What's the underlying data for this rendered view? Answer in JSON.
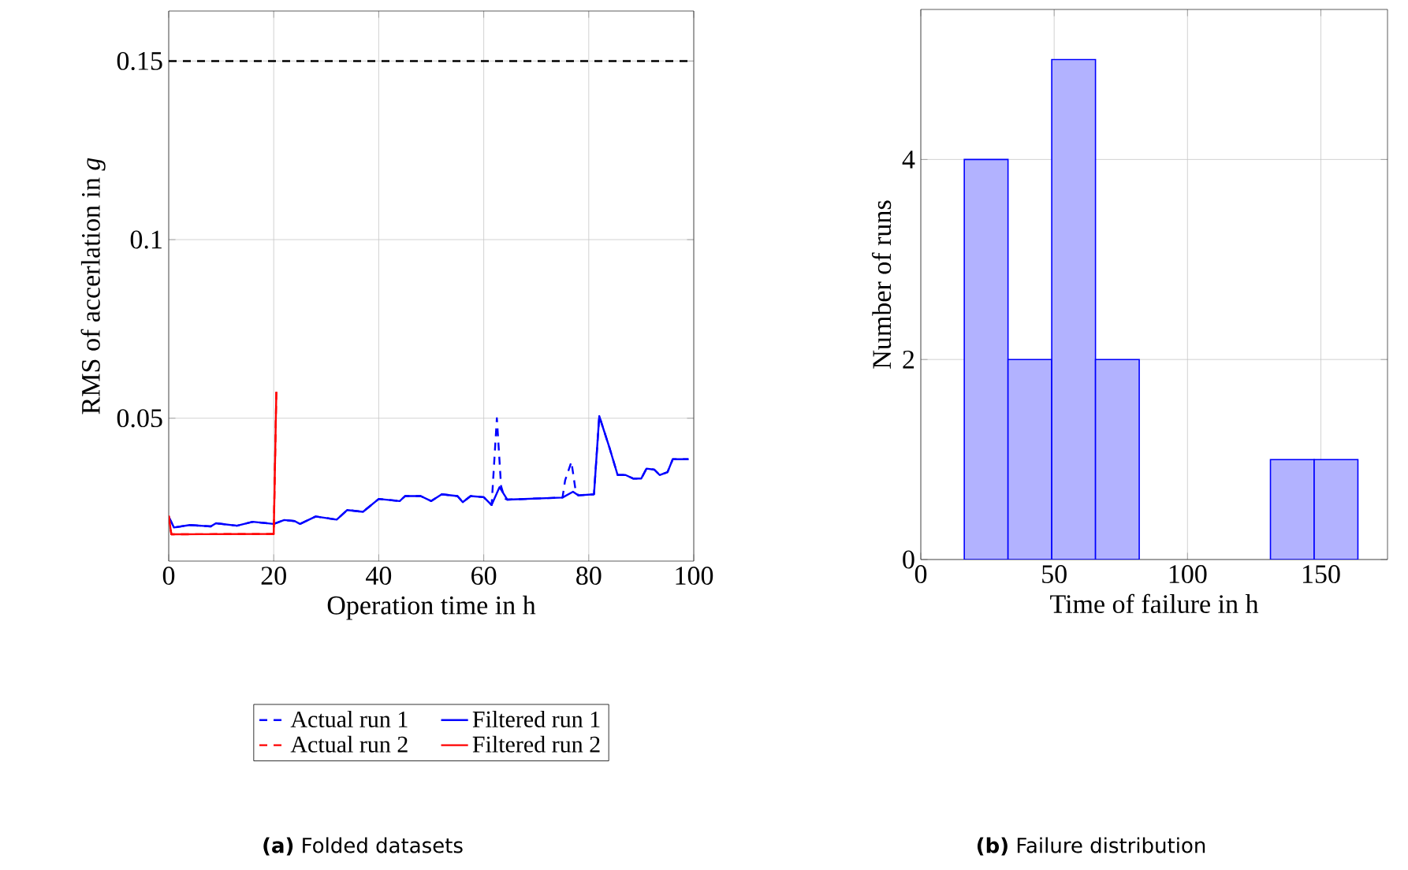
{
  "chart_data": [
    {
      "type": "line",
      "title": "**(a)** Folded datasets",
      "xlabel": "Operation time in h",
      "ylabel": "RMS of accerlation in *g*",
      "xlim": [
        0,
        100
      ],
      "ylim": [
        0.01,
        0.164
      ],
      "xticks": [
        0,
        20,
        40,
        60,
        80,
        100
      ],
      "yticks": [
        0.05,
        0.1,
        0.15
      ],
      "grid": true,
      "legend": "bottom",
      "marker": "none",
      "series": [
        {
          "name": "Actual run 1",
          "color": "#0000ff",
          "line_style": "dashed",
          "x": [
            0,
            1,
            4,
            8,
            9,
            13,
            16,
            20,
            22,
            24,
            25,
            28,
            32,
            34,
            37,
            40,
            44,
            45,
            48,
            50,
            52,
            55,
            56,
            57.5,
            60,
            61.5,
            62.5,
            63.3,
            64,
            64.5,
            75,
            75.5,
            76.7,
            77.5,
            78,
            81,
            82,
            84,
            85.5,
            87,
            88.5,
            90,
            91,
            92.5,
            93.5,
            95,
            96,
            99
          ],
          "values": [
            0.0224,
            0.0194,
            0.0201,
            0.0197,
            0.0206,
            0.0199,
            0.021,
            0.0204,
            0.0215,
            0.0212,
            0.0204,
            0.0225,
            0.0216,
            0.0243,
            0.0238,
            0.0274,
            0.0268,
            0.0282,
            0.0282,
            0.0268,
            0.0287,
            0.0282,
            0.0265,
            0.0282,
            0.0279,
            0.0257,
            0.05,
            0.031,
            0.0275,
            0.0272,
            0.0278,
            0.0326,
            0.0378,
            0.0297,
            0.0284,
            0.0287,
            0.0506,
            0.0415,
            0.0341,
            0.0341,
            0.0331,
            0.0331,
            0.0359,
            0.0356,
            0.0341,
            0.0349,
            0.0385,
            0.0385
          ]
        },
        {
          "name": "Filtered run 1",
          "color": "#0000ff",
          "line_style": "solid",
          "x": [
            0,
            1,
            4,
            8,
            9,
            13,
            16,
            20,
            22,
            24,
            25,
            28,
            32,
            34,
            37,
            40,
            44,
            45,
            48,
            50,
            52,
            55,
            56,
            57.5,
            60,
            61.5,
            63,
            64.5,
            75,
            77,
            78,
            81,
            82,
            84,
            85.5,
            87,
            88.5,
            90,
            91,
            92.5,
            93.5,
            95,
            96,
            99
          ],
          "values": [
            0.0224,
            0.0194,
            0.0201,
            0.0197,
            0.0206,
            0.0199,
            0.021,
            0.0204,
            0.0215,
            0.0212,
            0.0204,
            0.0225,
            0.0216,
            0.0243,
            0.0238,
            0.0274,
            0.0268,
            0.0282,
            0.0282,
            0.0268,
            0.0287,
            0.0282,
            0.0265,
            0.0282,
            0.0279,
            0.0257,
            0.0307,
            0.0272,
            0.0278,
            0.0294,
            0.0284,
            0.0287,
            0.0506,
            0.0415,
            0.0341,
            0.0341,
            0.0331,
            0.0331,
            0.0359,
            0.0356,
            0.0341,
            0.0349,
            0.0385,
            0.0385
          ]
        },
        {
          "name": "Actual run 2",
          "color": "#ff0000",
          "line_style": "dashed",
          "x": [
            0,
            0.5,
            20,
            20.5
          ],
          "values": [
            0.0227,
            0.0175,
            0.0176,
            0.0574
          ]
        },
        {
          "name": "Filtered run 2",
          "color": "#ff0000",
          "line_style": "solid",
          "x": [
            0,
            0.5,
            20,
            20.5
          ],
          "values": [
            0.0227,
            0.0175,
            0.0176,
            0.0574
          ]
        }
      ],
      "ref_lines": [
        {
          "axis": "y",
          "value": 0.15,
          "color": "#000000",
          "line_style": "dashed"
        }
      ]
    },
    {
      "type": "histogram",
      "title": "**(b)** Failure distribution",
      "xlabel": "Time of failure in h",
      "ylabel": "Number of runs",
      "xlim": [
        0,
        175
      ],
      "ylim": [
        0,
        5.5
      ],
      "xticks": [
        0,
        50,
        100,
        150
      ],
      "yticks": [
        0,
        2,
        4
      ],
      "grid": true,
      "color": "#b2b2ff",
      "bins": [
        16.3,
        32.7,
        49.1,
        65.5,
        81.9,
        98.3,
        114.7,
        131.1,
        147.5,
        163.9
      ],
      "values": [
        4,
        2,
        5,
        2,
        0,
        0,
        0,
        1,
        1
      ]
    }
  ]
}
